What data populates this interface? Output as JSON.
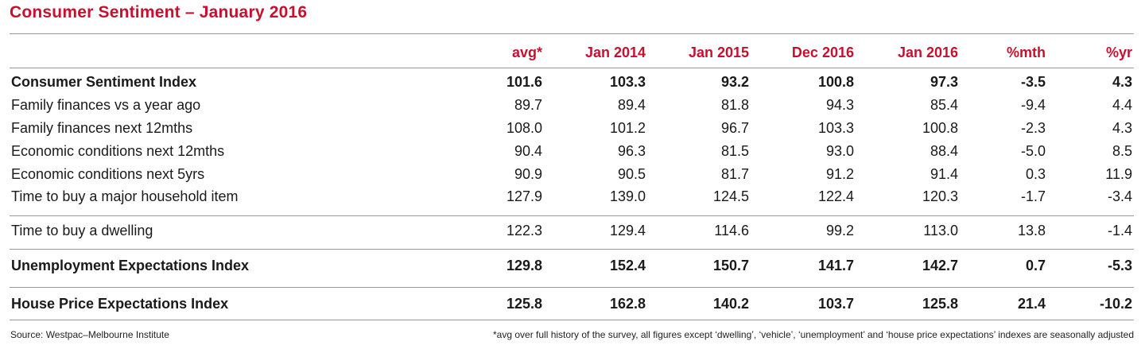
{
  "title": "Consumer Sentiment – January 2016",
  "columns": [
    "avg*",
    "Jan 2014",
    "Jan 2015",
    "Dec 2016",
    "Jan 2016",
    "%mth",
    "%yr"
  ],
  "rows": [
    {
      "label": "Consumer Sentiment Index",
      "values": [
        "101.6",
        "103.3",
        "93.2",
        "100.8",
        "97.3",
        "-3.5",
        "4.3"
      ]
    },
    {
      "label": "Family finances vs a year ago",
      "values": [
        "89.7",
        "89.4",
        "81.8",
        "94.3",
        "85.4",
        "-9.4",
        "4.4"
      ]
    },
    {
      "label": "Family finances next 12mths",
      "values": [
        "108.0",
        "101.2",
        "96.7",
        "103.3",
        "100.8",
        "-2.3",
        "4.3"
      ]
    },
    {
      "label": "Economic conditions next 12mths",
      "values": [
        "90.4",
        "96.3",
        "81.5",
        "93.0",
        "88.4",
        "-5.0",
        "8.5"
      ]
    },
    {
      "label": "Economic conditions next 5yrs",
      "values": [
        "90.9",
        "90.5",
        "81.7",
        "91.2",
        "91.4",
        "0.3",
        "11.9"
      ]
    },
    {
      "label": "Time to buy a major household item",
      "values": [
        "127.9",
        "139.0",
        "124.5",
        "122.4",
        "120.3",
        "-1.7",
        "-3.4"
      ]
    },
    {
      "label": "Time to buy a dwelling",
      "values": [
        "122.3",
        "129.4",
        "114.6",
        "99.2",
        "113.0",
        "13.8",
        "-1.4"
      ]
    },
    {
      "label": "Unemployment Expectations Index",
      "values": [
        "129.8",
        "152.4",
        "150.7",
        "141.7",
        "142.7",
        "0.7",
        "-5.3"
      ]
    },
    {
      "label": "House Price Expectations Index",
      "values": [
        "125.8",
        "162.8",
        "140.2",
        "103.7",
        "125.8",
        "21.4",
        "-10.2"
      ]
    }
  ],
  "source": "Source: Westpac–Melbourne Institute",
  "footnote": "*avg over full history of the survey, all figures except ‘dwelling’, ‘vehicle’, ‘unemployment’ and ‘house price expectations’ indexes are seasonally adjusted"
}
